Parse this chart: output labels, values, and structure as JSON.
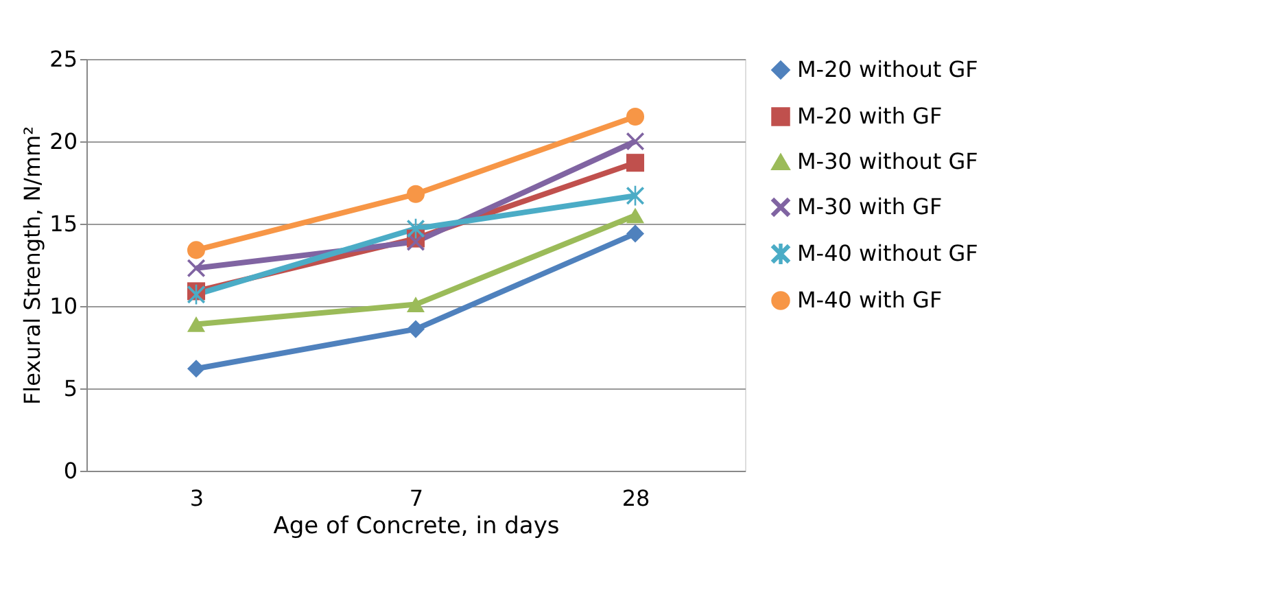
{
  "chart_data": {
    "type": "line",
    "xlabel": "Age of Concrete,  in days",
    "ylabel": "Flexural Strength, N/mm²",
    "categories": [
      "3",
      "7",
      "28"
    ],
    "ylim": [
      0,
      25
    ],
    "yticks": [
      0,
      5,
      10,
      15,
      20,
      25
    ],
    "grid": "y",
    "legend": "right",
    "series": [
      {
        "name": "M-20 without GF",
        "color": "#4f81bd",
        "marker": "diamond",
        "values": [
          6.2,
          8.6,
          14.4
        ]
      },
      {
        "name": "M-20 with GF",
        "color": "#c0504d",
        "marker": "square",
        "values": [
          10.9,
          14.1,
          18.7
        ]
      },
      {
        "name": "M-30 without GF",
        "color": "#9bbb59",
        "marker": "triangle",
        "values": [
          8.9,
          10.1,
          15.5
        ]
      },
      {
        "name": "M-30 with GF",
        "color": "#8064a2",
        "marker": "cross",
        "values": [
          12.3,
          13.9,
          20.0
        ]
      },
      {
        "name": "M-40 without GF",
        "color": "#4bacc6",
        "marker": "star",
        "values": [
          10.7,
          14.7,
          16.7
        ]
      },
      {
        "name": "M-40 with GF",
        "color": "#f79646",
        "marker": "circle",
        "values": [
          13.4,
          16.8,
          21.5
        ]
      }
    ]
  }
}
